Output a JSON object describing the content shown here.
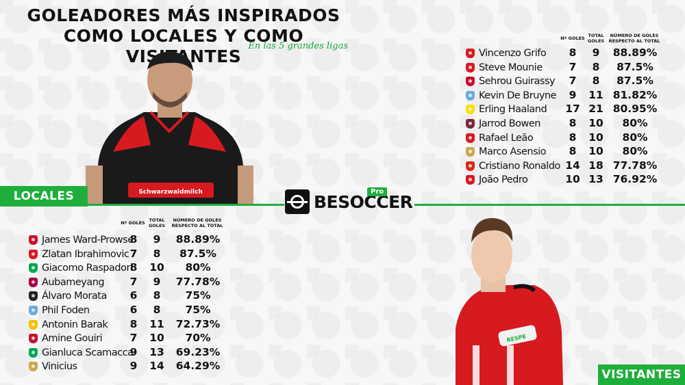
{
  "header": {
    "line1": "GOLEADORES MÁS INSPIRADOS",
    "line2": "COMO LOCALES Y COMO VISITANTES",
    "subtitle": "En las 5 grandes ligas"
  },
  "brand": {
    "name": "BESOCCER",
    "badge": "Pro"
  },
  "labels": {
    "home": "LOCALES",
    "away": "VISITANTES"
  },
  "home_table": {
    "columns": [
      "Nº GOLES",
      "TOTAL GOLES",
      "NÚMERO DE GOLES RESPECTO AL TOTAL"
    ],
    "rows": [
      {
        "player": "James Ward-Prowse",
        "goals": "8",
        "total": "9",
        "pct": "88.89%",
        "crest": "#c8102e"
      },
      {
        "player": "Zlatan Ibrahimovic",
        "goals": "7",
        "total": "8",
        "pct": "87.5%",
        "crest": "#d71920"
      },
      {
        "player": "Giacomo Raspadori",
        "goals": "8",
        "total": "10",
        "pct": "80%",
        "crest": "#00a752"
      },
      {
        "player": "Aubameyang",
        "goals": "7",
        "total": "9",
        "pct": "77.78%",
        "crest": "#a50044"
      },
      {
        "player": "Álvaro Morata",
        "goals": "6",
        "total": "8",
        "pct": "75%",
        "crest": "#222222"
      },
      {
        "player": "Phil Foden",
        "goals": "6",
        "total": "8",
        "pct": "75%",
        "crest": "#6cabdd"
      },
      {
        "player": "Antonin Barak",
        "goals": "8",
        "total": "11",
        "pct": "72.73%",
        "crest": "#f2c200"
      },
      {
        "player": "Amine Gouiri",
        "goals": "7",
        "total": "10",
        "pct": "70%",
        "crest": "#c8102e"
      },
      {
        "player": "Gianluca Scamacca",
        "goals": "9",
        "total": "13",
        "pct": "69.23%",
        "crest": "#00a752"
      },
      {
        "player": "Vinicius",
        "goals": "9",
        "total": "14",
        "pct": "64.29%",
        "crest": "#c9a94c"
      }
    ]
  },
  "away_table": {
    "columns": [
      "Nº GOLES",
      "TOTAL GOLES",
      "NÚMERO DE GOLES RESPECTO AL TOTAL"
    ],
    "rows": [
      {
        "player": "Vincenzo Grifo",
        "goals": "8",
        "total": "9",
        "pct": "88.89%",
        "crest": "#d71920"
      },
      {
        "player": "Steve Mounie",
        "goals": "7",
        "total": "8",
        "pct": "87.5%",
        "crest": "#d71920"
      },
      {
        "player": "Sehrou Guirassy",
        "goals": "7",
        "total": "8",
        "pct": "87.5%",
        "crest": "#c8102e"
      },
      {
        "player": "Kevin De Bruyne",
        "goals": "9",
        "total": "11",
        "pct": "81.82%",
        "crest": "#6cabdd"
      },
      {
        "player": "Erling Haaland",
        "goals": "17",
        "total": "21",
        "pct": "80.95%",
        "crest": "#fde100"
      },
      {
        "player": "Jarrod Bowen",
        "goals": "8",
        "total": "10",
        "pct": "80%",
        "crest": "#7a263a"
      },
      {
        "player": "Rafael Leão",
        "goals": "8",
        "total": "10",
        "pct": "80%",
        "crest": "#d71920"
      },
      {
        "player": "Marco Asensio",
        "goals": "8",
        "total": "10",
        "pct": "80%",
        "crest": "#c9a94c"
      },
      {
        "player": "Cristiano Ronaldo",
        "goals": "14",
        "total": "18",
        "pct": "77.78%",
        "crest": "#da291c"
      },
      {
        "player": "João Pedro",
        "goals": "10",
        "total": "13",
        "pct": "76.92%",
        "crest": "#d71920"
      }
    ]
  },
  "colors": {
    "accent": "#1fae3b",
    "freiburg_red": "#d71920",
    "southampton_red": "#d71920"
  }
}
